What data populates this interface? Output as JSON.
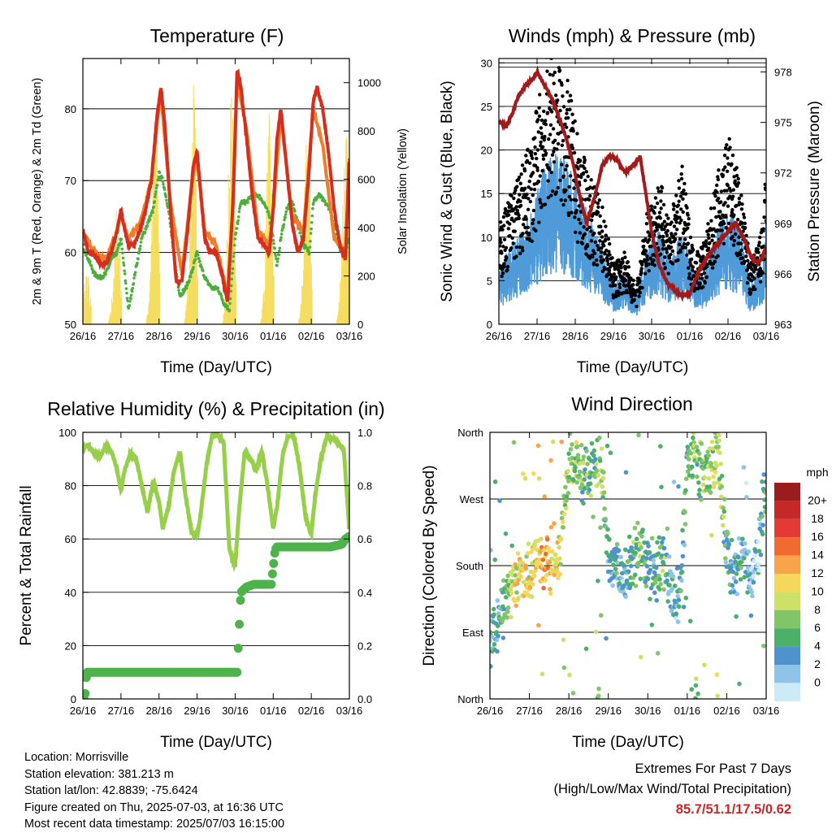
{
  "panels": {
    "temperature": {
      "title": "Temperature (F)",
      "ylabel_left": "2m & 9m T (Red, Orange) & 2m Td (Green)",
      "ylabel_right": "Solar Insolation (Yellow)",
      "xlabel": "Time (Day/UTC)"
    },
    "winds": {
      "title": "Winds (mph) & Pressure (mb)",
      "ylabel_left": "Sonic Wind & Gust (Blue, Black)",
      "ylabel_right": "Station Pressure (Maroon)",
      "xlabel": "Time (Day/UTC)"
    },
    "humidity": {
      "title": "Relative Humidity (%) & Precipitation (in)",
      "ylabel_left": "Percent & Total Rainfall",
      "xlabel": "Time (Day/UTC)"
    },
    "direction": {
      "title": "Wind Direction",
      "ylabel_left": "Direction (Colored By Speed)",
      "xlabel": "Time (Day/UTC)"
    }
  },
  "colorbar": {
    "title": "mph",
    "labels": [
      "20+",
      "18",
      "16",
      "14",
      "12",
      "10",
      "8",
      "6",
      "4",
      "2",
      "0"
    ],
    "colors": [
      "#9b1c1c",
      "#c62828",
      "#e53935",
      "#f26b2e",
      "#f9a44a",
      "#f5d85a",
      "#cfe067",
      "#80c669",
      "#4caf6a",
      "#4f93cc",
      "#8fc4ea",
      "#cdeaf8"
    ]
  },
  "footer": {
    "location": "Location: Morrisville",
    "elevation": "Station elevation: 381.213 m",
    "latlon": "Station lat/lon: 42.8839; -75.6424",
    "created": "Figure created on Thu, 2025-07-03, at 16:36 UTC",
    "latest": "Most recent data timestamp: 2025/07/03 16:15:00"
  },
  "extremes": {
    "title": "Extremes For Past 7 Days",
    "subtitle": "(High/Low/Max Wind/Total Precipitation)",
    "values": "85.7/51.1/17.5/0.62"
  },
  "colors": {
    "temp2m": "#d32f1e",
    "temp9m": "#f07d2a",
    "dewpoint": "#4caf3c",
    "solar": "#f5dc5a",
    "sonic_wind": "#4f9bd9",
    "gust": "#000000",
    "pressure": "#a01c1c",
    "rh": "#97cf4a",
    "precip": "#4db34a"
  },
  "chart_data": [
    {
      "type": "line",
      "title": "Temperature (F)",
      "xlabel": "Time (Day/UTC)",
      "ylabel": "2m & 9m T (Red, Orange) & 2m Td (Green)",
      "y2label": "Solar Insolation (Yellow)",
      "x_ticks": [
        "26/16",
        "27/16",
        "28/16",
        "29/16",
        "30/16",
        "01/16",
        "02/16",
        "03/16"
      ],
      "xlim": [
        0,
        7
      ],
      "ylim": [
        50,
        87
      ],
      "y_ticks": [
        50,
        60,
        70,
        80
      ],
      "y2lim": [
        0,
        1100
      ],
      "y2_ticks": [
        0,
        200,
        400,
        600,
        800,
        1000
      ],
      "series": [
        {
          "name": "2m T",
          "axis": "left",
          "x": [
            0,
            0.15,
            0.3,
            0.45,
            0.6,
            0.75,
            0.9,
            1.0,
            1.1,
            1.2,
            1.35,
            1.5,
            1.65,
            1.8,
            1.95,
            2.05,
            2.15,
            2.3,
            2.45,
            2.6,
            2.75,
            2.9,
            3.0,
            3.1,
            3.2,
            3.35,
            3.5,
            3.65,
            3.8,
            3.95,
            4.05,
            4.15,
            4.3,
            4.45,
            4.6,
            4.75,
            4.9,
            5.0,
            5.1,
            5.2,
            5.35,
            5.5,
            5.65,
            5.8,
            5.95,
            6.05,
            6.15,
            6.3,
            6.45,
            6.6,
            6.75,
            6.9,
            7.0
          ],
          "y": [
            63,
            60,
            59.5,
            58.5,
            58.5,
            60,
            63,
            66,
            63,
            61,
            61,
            63,
            66,
            70,
            79,
            83,
            78,
            66,
            56,
            56,
            63,
            72,
            74,
            68,
            62,
            60,
            60,
            57,
            53,
            68,
            85.5,
            83,
            76,
            68,
            62,
            61,
            60,
            66,
            76,
            80,
            72,
            64,
            60,
            62,
            72,
            81,
            83,
            80,
            74,
            66,
            61,
            59,
            74
          ]
        },
        {
          "name": "9m T",
          "axis": "left",
          "x": [
            0,
            0.3,
            0.6,
            0.9,
            1.0,
            1.2,
            1.5,
            1.8,
            1.95,
            2.05,
            2.3,
            2.6,
            2.9,
            3.0,
            3.2,
            3.5,
            3.8,
            3.95,
            4.05,
            4.3,
            4.6,
            4.9,
            5.0,
            5.2,
            5.5,
            5.8,
            6.05,
            6.3,
            6.6,
            6.9,
            7.0
          ],
          "y": [
            63,
            60,
            59,
            63,
            65,
            62,
            64,
            70,
            78,
            82,
            67,
            57,
            71,
            73,
            63,
            61,
            54,
            67,
            84,
            77,
            63,
            61,
            66,
            79,
            65,
            63,
            80,
            75,
            62,
            60,
            73
          ]
        },
        {
          "name": "2m Td",
          "axis": "left",
          "x": [
            0,
            0.15,
            0.3,
            0.45,
            0.6,
            0.75,
            0.9,
            1.0,
            1.1,
            1.2,
            1.3,
            1.4,
            1.55,
            1.7,
            1.85,
            2.0,
            2.1,
            2.25,
            2.4,
            2.55,
            2.7,
            2.85,
            3.0,
            3.1,
            3.25,
            3.4,
            3.55,
            3.7,
            3.85,
            4.0,
            4.15,
            4.3,
            4.45,
            4.6,
            4.75,
            4.9,
            5.0,
            5.1,
            5.2,
            5.35,
            5.5,
            5.65,
            5.8,
            5.95,
            6.05,
            6.2,
            6.35,
            6.5,
            6.65,
            6.8,
            6.95,
            7.0
          ],
          "y": [
            61,
            59,
            57,
            56.5,
            57,
            59,
            60,
            62,
            57,
            52,
            55,
            58,
            62,
            64,
            66,
            71,
            70,
            66,
            59,
            54,
            55,
            57,
            60,
            58,
            56,
            55,
            55,
            53,
            52,
            62,
            67,
            67,
            68,
            68,
            67,
            65,
            62,
            58,
            62,
            66,
            67,
            64,
            61,
            60,
            67,
            68,
            67,
            66,
            62,
            60,
            61,
            62
          ]
        },
        {
          "name": "Solar Insolation",
          "axis": "right",
          "note": "daily cycles peaking near local noon",
          "x": [
            0.1,
            0.85,
            1.85,
            2.85,
            3.85,
            4.85,
            5.85,
            6.85
          ],
          "y": [
            250,
            500,
            1000,
            1050,
            1000,
            880,
            850,
            900
          ]
        }
      ]
    },
    {
      "type": "line",
      "title": "Winds (mph) & Pressure (mb)",
      "xlabel": "Time (Day/UTC)",
      "ylabel": "Sonic Wind & Gust (Blue, Black)",
      "y2label": "Station Pressure (Maroon)",
      "x_ticks": [
        "26/16",
        "27/16",
        "28/16",
        "29/16",
        "30/16",
        "01/16",
        "02/16",
        "03/16"
      ],
      "xlim": [
        0,
        7
      ],
      "ylim": [
        0,
        30.5
      ],
      "y_ticks": [
        0,
        5,
        10,
        15,
        20,
        25,
        30
      ],
      "y2lim": [
        963,
        978.8
      ],
      "y2_ticks": [
        963,
        966,
        969,
        972,
        975,
        978
      ],
      "series": [
        {
          "name": "Sonic Wind",
          "axis": "left",
          "x": [
            0,
            0.3,
            0.6,
            0.9,
            1.2,
            1.5,
            1.8,
            2.1,
            2.4,
            2.7,
            3.0,
            3.3,
            3.6,
            3.9,
            4.2,
            4.5,
            4.8,
            5.1,
            5.4,
            5.7,
            6.0,
            6.3,
            6.6,
            6.9,
            7.0
          ],
          "y": [
            4,
            6,
            7,
            9,
            12,
            13,
            12,
            10,
            8,
            6,
            3,
            4,
            2,
            6,
            7,
            5,
            7,
            4,
            4,
            7,
            9,
            7,
            3,
            5,
            8
          ]
        },
        {
          "name": "Gust",
          "axis": "left",
          "x": [
            0,
            0.3,
            0.6,
            0.9,
            1.2,
            1.5,
            1.8,
            2.1,
            2.4,
            2.7,
            3.0,
            3.3,
            3.6,
            3.9,
            4.2,
            4.5,
            4.8,
            5.1,
            5.4,
            5.7,
            6.0,
            6.3,
            6.6,
            6.9,
            7.0
          ],
          "y": [
            8,
            11,
            13,
            16,
            22,
            24,
            20,
            15,
            12,
            10,
            5,
            6,
            3,
            10,
            12,
            9,
            13,
            6,
            7,
            12,
            16,
            12,
            5,
            8,
            13
          ]
        },
        {
          "name": "Station Pressure",
          "axis": "right",
          "x": [
            0,
            0.2,
            0.35,
            0.5,
            0.7,
            0.9,
            1.0,
            1.15,
            1.3,
            1.5,
            1.7,
            1.9,
            2.1,
            2.3,
            2.5,
            2.7,
            2.9,
            3.1,
            3.3,
            3.5,
            3.7,
            3.9,
            4.0,
            4.2,
            4.4,
            4.6,
            4.8,
            5.0,
            5.2,
            5.4,
            5.6,
            5.8,
            6.0,
            6.2,
            6.4,
            6.6,
            6.8,
            7.0
          ],
          "y": [
            975,
            974.8,
            975.5,
            976.5,
            977.2,
            977.6,
            978,
            977.4,
            976.8,
            975.8,
            974.5,
            973,
            970.8,
            969,
            970.5,
            972.4,
            973,
            972.8,
            972,
            972.4,
            973,
            970,
            968.5,
            966.5,
            965.5,
            965,
            964.7,
            964.8,
            966,
            966.8,
            967.4,
            968,
            968.5,
            969,
            968.2,
            967,
            966.6,
            967.5
          ]
        }
      ]
    },
    {
      "type": "line",
      "title": "Relative Humidity (%) & Precipitation (in)",
      "xlabel": "Time (Day/UTC)",
      "ylabel": "Percent & Total Rainfall",
      "x_ticks": [
        "26/16",
        "27/16",
        "28/16",
        "29/16",
        "30/16",
        "01/16",
        "02/16",
        "03/16"
      ],
      "xlim": [
        0,
        7
      ],
      "ylim": [
        0,
        100
      ],
      "y_ticks": [
        0,
        20,
        40,
        60,
        80,
        100
      ],
      "y2lim": [
        0,
        1.0
      ],
      "y2_ticks": [
        0.0,
        0.2,
        0.4,
        0.6,
        0.8,
        1.0
      ],
      "series": [
        {
          "name": "Relative Humidity",
          "axis": "left",
          "x": [
            0,
            0.15,
            0.3,
            0.45,
            0.6,
            0.75,
            0.9,
            1.0,
            1.1,
            1.25,
            1.4,
            1.55,
            1.7,
            1.85,
            2.0,
            2.1,
            2.25,
            2.4,
            2.55,
            2.7,
            2.85,
            3.0,
            3.1,
            3.25,
            3.4,
            3.55,
            3.7,
            3.85,
            4.0,
            4.1,
            4.25,
            4.4,
            4.55,
            4.7,
            4.85,
            5.0,
            5.1,
            5.25,
            5.4,
            5.55,
            5.7,
            5.85,
            6.0,
            6.1,
            6.25,
            6.4,
            6.55,
            6.7,
            6.85,
            6.95,
            7.0
          ],
          "y": [
            94,
            95,
            92,
            91,
            95,
            93,
            86,
            78,
            86,
            92,
            90,
            80,
            70,
            82,
            74,
            64,
            72,
            86,
            93,
            76,
            63,
            61,
            70,
            88,
            99,
            99,
            96,
            56,
            50,
            70,
            93,
            90,
            86,
            93,
            80,
            64,
            72,
            92,
            99,
            98,
            86,
            68,
            62,
            76,
            90,
            98,
            98,
            96,
            94,
            74,
            62
          ]
        },
        {
          "name": "Total Precipitation",
          "axis": "right",
          "x": [
            0,
            0.05,
            0.1,
            0.2,
            4.05,
            4.1,
            4.15,
            4.3,
            4.5,
            4.7,
            4.95,
            5.05,
            5.1,
            5.5,
            6.0,
            6.5,
            6.8,
            6.9,
            7.0
          ],
          "y": [
            0.0,
            0.0,
            0.1,
            0.1,
            0.1,
            0.25,
            0.4,
            0.42,
            0.43,
            0.43,
            0.43,
            0.56,
            0.57,
            0.57,
            0.57,
            0.57,
            0.58,
            0.6,
            0.61
          ]
        }
      ]
    },
    {
      "type": "scatter",
      "title": "Wind Direction",
      "xlabel": "Time (Day/UTC)",
      "ylabel": "Direction (Colored By Speed)",
      "x_ticks": [
        "26/16",
        "27/16",
        "28/16",
        "29/16",
        "30/16",
        "01/16",
        "02/16",
        "03/16"
      ],
      "xlim": [
        0,
        7
      ],
      "y_categories": [
        "North",
        "East",
        "South",
        "West",
        "North"
      ],
      "ylim": [
        0,
        360
      ],
      "color_by": "speed (mph)",
      "series": [
        {
          "name": "Wind Direction",
          "x": [
            0.05,
            0.2,
            0.4,
            0.6,
            0.8,
            1.0,
            1.2,
            1.4,
            1.6,
            1.8,
            2.0,
            2.2,
            2.4,
            2.6,
            2.8,
            3.0,
            3.2,
            3.4,
            3.6,
            3.8,
            4.0,
            4.2,
            4.4,
            4.6,
            4.8,
            5.0,
            5.2,
            5.4,
            5.6,
            5.8,
            6.0,
            6.2,
            6.4,
            6.6,
            6.8,
            7.0
          ],
          "y": [
            80,
            100,
            140,
            160,
            165,
            170,
            175,
            180,
            190,
            200,
            320,
            330,
            300,
            310,
            330,
            190,
            180,
            160,
            180,
            200,
            180,
            170,
            190,
            140,
            130,
            320,
            340,
            300,
            310,
            330,
            200,
            170,
            190,
            150,
            200,
            300
          ],
          "speed": [
            4,
            4,
            7,
            10,
            12,
            11,
            12,
            13,
            12,
            11,
            8,
            9,
            6,
            7,
            9,
            4,
            5,
            3,
            6,
            8,
            6,
            5,
            7,
            3,
            4,
            6,
            8,
            7,
            9,
            10,
            5,
            4,
            5,
            2,
            3,
            6
          ]
        }
      ]
    }
  ]
}
